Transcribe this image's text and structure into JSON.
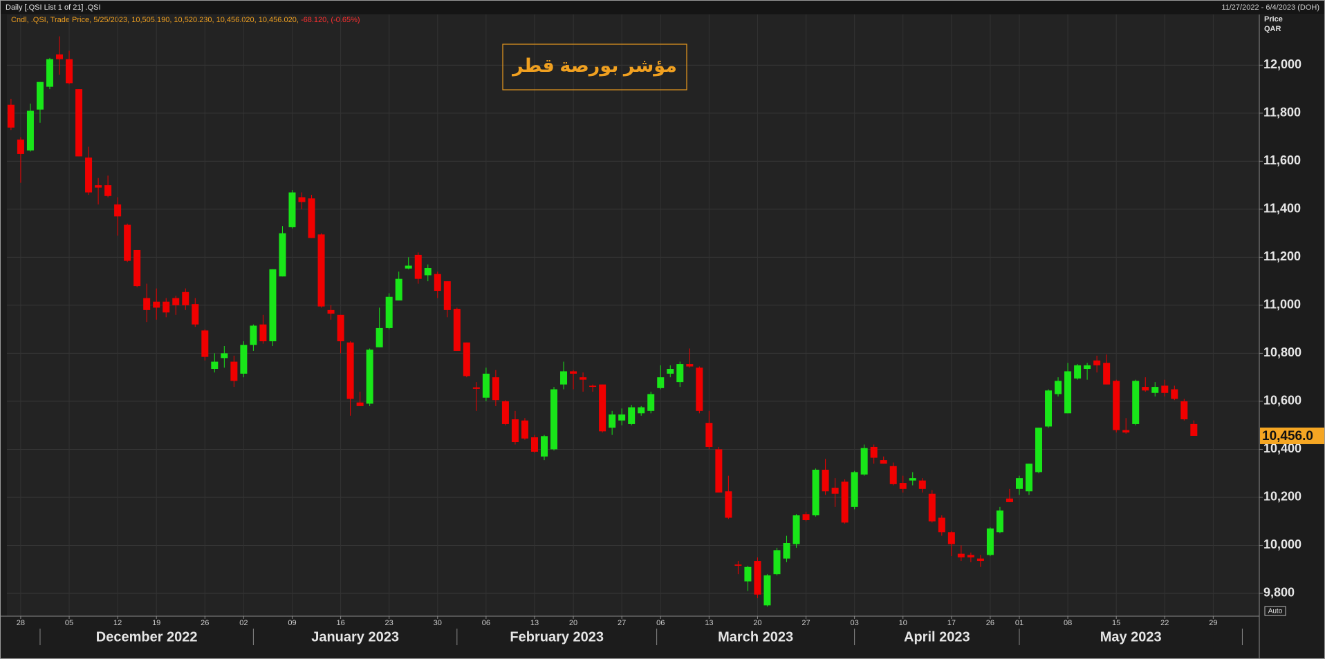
{
  "chart_data": {
    "type": "candlestick",
    "header": "Daily [.QSI List 1 of 21] .QSI",
    "date_range": "11/27/2022 - 6/4/2023 (DOH)",
    "info_line": "Cndl, .QSI, Trade Price, 5/25/2023, 10,505.190, 10,520.230, 10,456.020, 10,456.020,",
    "info_change": "-68.120, (-0.65%)",
    "title": "مؤشر بورصة قطر",
    "y_axis_title": "Price",
    "y_axis_unit": "QAR",
    "scale_mode": "Auto",
    "up_color": "#19e619",
    "down_color": "#f00000",
    "grid": true,
    "ylim": [
      9705,
      12211
    ],
    "yticks": [
      {
        "value": 9800,
        "label": "9,800"
      },
      {
        "value": 10000,
        "label": "10,000"
      },
      {
        "value": 10200,
        "label": "10,200"
      },
      {
        "value": 10400,
        "label": "10,400"
      },
      {
        "value": 10600,
        "label": "10,600"
      },
      {
        "value": 10800,
        "label": "10,800"
      },
      {
        "value": 11000,
        "label": "11,000"
      },
      {
        "value": 11200,
        "label": "11,200"
      },
      {
        "value": 11400,
        "label": "11,400"
      },
      {
        "value": 11600,
        "label": "11,600"
      },
      {
        "value": 11800,
        "label": "11,800"
      },
      {
        "value": 12000,
        "label": "12,000"
      }
    ],
    "last_price": {
      "value": 10456.02,
      "label": "10,456.0"
    },
    "month_labels": [
      "December 2022",
      "January 2023",
      "February 2023",
      "March 2023",
      "April 2023",
      "May 2023"
    ],
    "categories": [
      null,
      "28",
      null,
      null,
      null,
      null,
      "05",
      null,
      null,
      null,
      null,
      "12",
      null,
      null,
      null,
      "19",
      null,
      null,
      null,
      null,
      "26",
      null,
      null,
      null,
      "02",
      null,
      null,
      null,
      null,
      "09",
      null,
      null,
      null,
      null,
      "16",
      null,
      null,
      null,
      null,
      "23",
      null,
      null,
      null,
      null,
      "30",
      null,
      null,
      null,
      null,
      "06",
      null,
      null,
      null,
      null,
      "13",
      null,
      null,
      null,
      "20",
      null,
      null,
      null,
      null,
      "27",
      null,
      null,
      null,
      "06",
      null,
      null,
      null,
      null,
      "13",
      null,
      null,
      null,
      null,
      "20",
      null,
      null,
      null,
      null,
      "27",
      null,
      null,
      null,
      null,
      "03",
      null,
      null,
      null,
      null,
      "10",
      null,
      null,
      null,
      null,
      "17",
      null,
      null,
      null,
      "26",
      null,
      null,
      "01",
      null,
      null,
      null,
      null,
      "08",
      null,
      null,
      null,
      null,
      "15",
      null,
      null,
      null,
      null,
      "22",
      null,
      null,
      null,
      null,
      "29"
    ],
    "open": [
      11835,
      11690,
      11645,
      11815,
      11910,
      12045,
      12025,
      11900,
      11615,
      11500,
      11500,
      11420,
      11335,
      11230,
      11030,
      11015,
      11015,
      11030,
      11055,
      11005,
      10895,
      10735,
      10780,
      10765,
      10715,
      10835,
      10920,
      10850,
      11120,
      11325,
      11450,
      11445,
      11295,
      10980,
      10960,
      10845,
      10595,
      10590,
      10825,
      10905,
      11020,
      11153,
      11210,
      11125,
      11130,
      11100,
      10985,
      10845,
      10658,
      10615,
      10700,
      10600,
      10525,
      10520,
      10450,
      10370,
      10400,
      10670,
      10725,
      10700,
      10665,
      10670,
      10490,
      10520,
      10505,
      10550,
      10560,
      10655,
      10715,
      10680,
      10755,
      10740,
      10510,
      10400,
      10225,
      9920,
      9850,
      9935,
      9750,
      9880,
      9945,
      10005,
      10130,
      10125,
      10315,
      10240,
      10265,
      10160,
      10295,
      10410,
      10355,
      10330,
      10260,
      10270,
      10270,
      10215,
      10115,
      10055,
      9965,
      9960,
      9945,
      9960,
      10055,
      10195,
      10235,
      10225,
      10305,
      10495,
      10630,
      10550,
      10695,
      10735,
      10770,
      10760,
      10685,
      10480,
      10505,
      10660,
      10635,
      10665,
      10650,
      10600,
      10505.19,
      null,
      null
    ],
    "high": [
      11860,
      11700,
      11840,
      11930,
      12030,
      12120,
      12060,
      11900,
      11660,
      11530,
      11540,
      11450,
      11340,
      11230,
      11090,
      11070,
      11030,
      11040,
      11070,
      11030,
      10900,
      10800,
      10830,
      10790,
      10850,
      10920,
      10960,
      11150,
      11330,
      11480,
      11470,
      11460,
      11300,
      11000,
      10960,
      10850,
      10640,
      10820,
      10990,
      11050,
      11140,
      11200,
      11220,
      11170,
      11140,
      11100,
      10990,
      10845,
      10680,
      10740,
      10730,
      10605,
      10560,
      10530,
      10460,
      10460,
      10660,
      10765,
      10730,
      10720,
      10670,
      10670,
      10560,
      10570,
      10585,
      10580,
      10640,
      10750,
      10750,
      10765,
      10820,
      10745,
      10560,
      10410,
      10290,
      9935,
      9915,
      9950,
      9880,
      9990,
      10040,
      10130,
      10140,
      10320,
      10360,
      10280,
      10275,
      10310,
      10420,
      10420,
      10370,
      10345,
      10290,
      10305,
      10280,
      10230,
      10125,
      10060,
      10000,
      9970,
      9960,
      10075,
      10160,
      10235,
      10290,
      10340,
      10490,
      10650,
      10700,
      10760,
      10755,
      10760,
      10790,
      10795,
      10690,
      10530,
      10690,
      10700,
      10680,
      10690,
      10665,
      10610,
      10520.23,
      null,
      null
    ],
    "low": [
      11730,
      11510,
      11640,
      11760,
      11900,
      11960,
      11920,
      11620,
      11460,
      11420,
      11450,
      11290,
      11180,
      11075,
      10930,
      10940,
      10950,
      10960,
      10980,
      10910,
      10770,
      10720,
      10740,
      10660,
      10700,
      10810,
      10840,
      10830,
      11120,
      11320,
      11400,
      11280,
      10990,
      10940,
      10800,
      10540,
      10580,
      10580,
      10825,
      10900,
      11020,
      11150,
      11090,
      11100,
      11030,
      10950,
      10810,
      10700,
      10560,
      10600,
      10580,
      10500,
      10420,
      10440,
      10385,
      10355,
      10395,
      10650,
      10650,
      10640,
      10640,
      10470,
      10460,
      10500,
      10500,
      10540,
      10550,
      10650,
      10700,
      10660,
      10740,
      10550,
      10400,
      10220,
      10110,
      9880,
      9810,
      9780,
      9745,
      9875,
      9930,
      9990,
      10100,
      10120,
      10210,
      10160,
      10090,
      10150,
      10290,
      10340,
      10340,
      10250,
      10220,
      10250,
      10220,
      10095,
      10040,
      9955,
      9935,
      9930,
      9910,
      9955,
      10050,
      10180,
      10210,
      10210,
      10300,
      10490,
      10620,
      10550,
      10690,
      10690,
      10720,
      10670,
      10470,
      10465,
      10500,
      10640,
      10620,
      10620,
      10605,
      10520,
      10456.02,
      null,
      null
    ],
    "close": [
      11740,
      11630,
      11810,
      11930,
      12025,
      12025,
      11925,
      11620,
      11470,
      11490,
      11455,
      11370,
      11185,
      11080,
      10980,
      10990,
      10970,
      11000,
      11000,
      10920,
      10785,
      10765,
      10800,
      10685,
      10835,
      10915,
      10850,
      11150,
      11300,
      11470,
      11430,
      11280,
      10995,
      10965,
      10850,
      10610,
      10580,
      10815,
      10905,
      11035,
      11110,
      11165,
      11110,
      11155,
      11060,
      10980,
      10810,
      10705,
      10652,
      10715,
      10605,
      10505,
      10430,
      10445,
      10390,
      10455,
      10650,
      10725,
      10715,
      10690,
      10660,
      10475,
      10545,
      10545,
      10575,
      10575,
      10630,
      10700,
      10735,
      10755,
      10745,
      10560,
      10410,
      10220,
      10115,
      9915,
      9910,
      9795,
      9875,
      9980,
      10010,
      10125,
      10105,
      10315,
      10225,
      10215,
      10095,
      10305,
      10405,
      10365,
      10340,
      10255,
      10235,
      10280,
      10235,
      10100,
      10055,
      10005,
      9950,
      9950,
      9935,
      10070,
      10145,
      10180,
      10280,
      10340,
      10490,
      10645,
      10685,
      10725,
      10750,
      10750,
      10750,
      10670,
      10480,
      10470,
      10685,
      10645,
      10660,
      10635,
      10610,
      10525,
      10456.02,
      null,
      null
    ]
  }
}
